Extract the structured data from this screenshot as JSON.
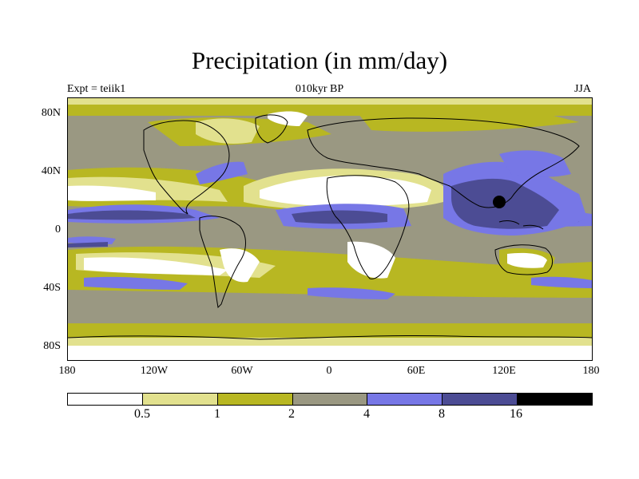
{
  "title": "Precipitation (in mm/day)",
  "left_string": "Expt = teiik1",
  "center_string": "010kyr BP",
  "right_string": "JJA",
  "y_ticks": [
    "80N",
    "40N",
    "0",
    "40S",
    "80S"
  ],
  "x_ticks": [
    "180",
    "120W",
    "60W",
    "0",
    "60E",
    "120E",
    "180"
  ],
  "colorbar": {
    "colors": [
      "#ffffff",
      "#e2e18e",
      "#b8b722",
      "#9a9882",
      "#7777e6",
      "#4c4c94",
      "#000000"
    ],
    "labels": [
      "0.5",
      "1",
      "2",
      "4",
      "8",
      "16"
    ]
  }
}
